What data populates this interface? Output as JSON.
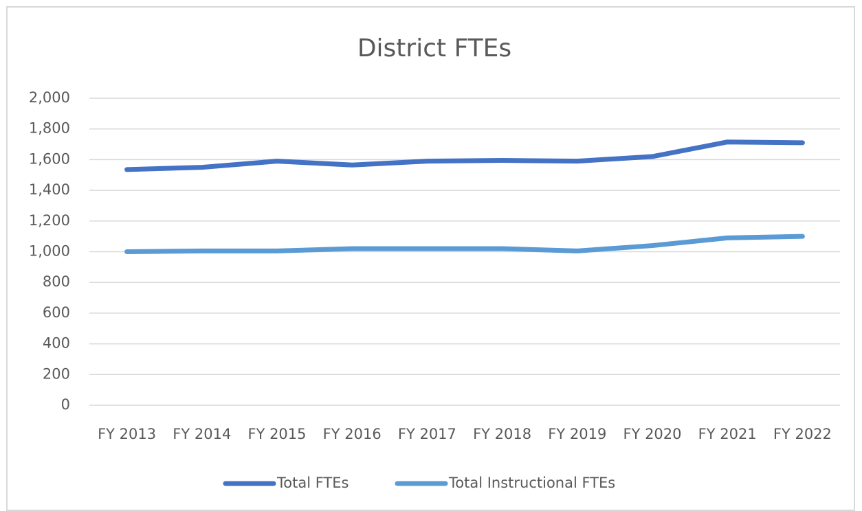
{
  "chart_data": {
    "type": "line",
    "title": "District FTEs",
    "categories": [
      "FY 2013",
      "FY 2014",
      "FY 2015",
      "FY 2016",
      "FY 2017",
      "FY 2018",
      "FY 2019",
      "FY 2020",
      "FY 2021",
      "FY 2022"
    ],
    "series": [
      {
        "name": "Total FTEs",
        "color": "#4472c4",
        "values": [
          1535,
          1550,
          1590,
          1565,
          1590,
          1595,
          1590,
          1620,
          1715,
          1710
        ]
      },
      {
        "name": "Total Instructional FTEs",
        "color": "#5b9bd5",
        "values": [
          1000,
          1005,
          1005,
          1020,
          1020,
          1020,
          1005,
          1040,
          1090,
          1100
        ]
      }
    ],
    "ylim": [
      0,
      2000
    ],
    "yticks": [
      0,
      200,
      400,
      600,
      800,
      {
        "value": 1000,
        "label": "1,000"
      },
      {
        "value": 1200,
        "label": "1,200"
      },
      {
        "value": 1400,
        "label": "1,400"
      },
      {
        "value": 1600,
        "label": "1,600"
      },
      {
        "value": 1800,
        "label": "1,800"
      },
      {
        "value": 2000,
        "label": "2,000"
      }
    ],
    "grid": true,
    "legend": "bottom"
  }
}
